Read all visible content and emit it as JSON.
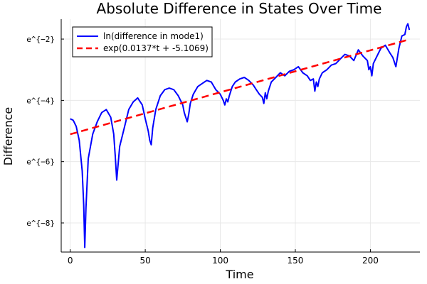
{
  "chart_data": {
    "type": "line",
    "title": "Absolute Difference in States Over Time",
    "xlabel": "Time",
    "ylabel": "Difference",
    "xlim": [
      -6,
      233
    ],
    "ylim": [
      -8.95,
      -1.35
    ],
    "x_ticks": [
      0,
      50,
      100,
      150,
      200
    ],
    "y_scale": "log (natural), values shown as ln",
    "y_ticks": [
      {
        "value": -2,
        "label": "e^{−2}"
      },
      {
        "value": -4,
        "label": "e^{−4}"
      },
      {
        "value": -6,
        "label": "e^{−6}"
      },
      {
        "value": -8,
        "label": "e^{−8}"
      }
    ],
    "grid": true,
    "legend_position": "top-left",
    "series": [
      {
        "name": "ln(difference in mode1)",
        "color": "#0000ff",
        "style": "solid",
        "x": [
          0,
          2,
          4,
          6,
          8,
          9,
          9.7,
          10.5,
          12,
          15,
          18,
          21,
          24,
          27,
          29,
          30,
          31,
          33,
          36,
          39,
          42,
          45,
          48,
          50,
          52,
          53,
          54,
          55,
          57,
          60,
          63,
          66,
          69,
          72,
          75,
          76,
          77,
          78,
          79,
          80,
          82,
          85,
          88,
          91,
          94,
          97,
          100,
          102,
          103,
          104,
          105,
          106,
          107,
          108,
          110,
          113,
          116,
          119,
          122,
          124,
          126,
          128,
          129,
          130,
          131,
          132,
          134,
          137,
          140,
          143,
          146,
          149,
          152,
          155,
          158,
          160,
          162,
          163,
          164,
          165,
          166,
          168,
          171,
          174,
          177,
          180,
          183,
          186,
          189,
          192,
          195,
          198,
          199,
          200,
          201,
          202,
          204,
          207,
          210,
          213,
          215,
          217,
          219,
          221,
          223,
          224,
          225,
          226
        ],
        "y": [
          -4.6,
          -4.65,
          -4.85,
          -5.3,
          -6.3,
          -7.4,
          -8.8,
          -7.5,
          -5.9,
          -5.1,
          -4.7,
          -4.4,
          -4.3,
          -4.55,
          -5.1,
          -5.8,
          -6.6,
          -5.5,
          -4.9,
          -4.3,
          -4.05,
          -3.92,
          -4.15,
          -4.6,
          -5.0,
          -5.3,
          -5.45,
          -4.9,
          -4.3,
          -3.85,
          -3.65,
          -3.6,
          -3.65,
          -3.85,
          -4.15,
          -4.4,
          -4.55,
          -4.7,
          -4.45,
          -4.1,
          -3.8,
          -3.55,
          -3.45,
          -3.35,
          -3.4,
          -3.65,
          -3.8,
          -4.0,
          -4.15,
          -3.95,
          -4.05,
          -3.85,
          -3.7,
          -3.55,
          -3.4,
          -3.3,
          -3.25,
          -3.35,
          -3.5,
          -3.65,
          -3.8,
          -3.9,
          -4.1,
          -3.75,
          -3.95,
          -3.7,
          -3.4,
          -3.25,
          -3.1,
          -3.2,
          -3.05,
          -3.0,
          -2.9,
          -3.1,
          -3.2,
          -3.35,
          -3.3,
          -3.7,
          -3.4,
          -3.55,
          -3.3,
          -3.1,
          -3.0,
          -2.85,
          -2.8,
          -2.65,
          -2.5,
          -2.55,
          -2.7,
          -2.35,
          -2.55,
          -2.7,
          -3.0,
          -2.9,
          -3.2,
          -2.8,
          -2.6,
          -2.3,
          -2.2,
          -2.45,
          -2.6,
          -2.9,
          -2.3,
          -1.9,
          -1.85,
          -1.6,
          -1.5,
          -1.7
        ]
      },
      {
        "name": "exp(0.0137*t + -5.1069)",
        "color": "#ff0000",
        "style": "dashed",
        "slope": 0.0137,
        "intercept": -5.1069,
        "x_range": [
          0,
          226
        ]
      }
    ]
  }
}
